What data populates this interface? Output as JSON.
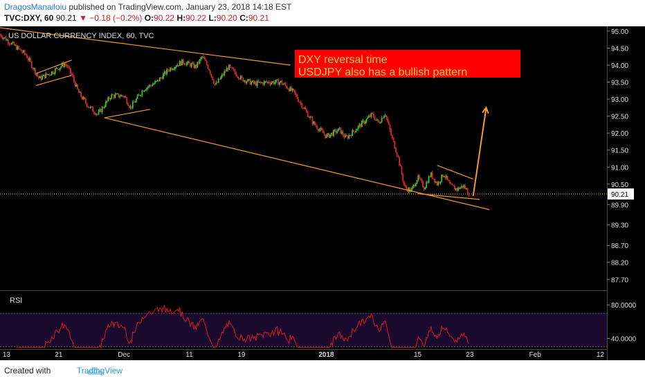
{
  "header": {
    "author": "DragosManailoiu",
    "published": "published on TradingView.com, January 23, 2018 14:18 EST",
    "symbol": "TVC:DXY, 60",
    "last": "90.21",
    "change_arrow": "▼",
    "change": "−0.18 (−0.2%)",
    "open_label": "O:",
    "open": "90.22",
    "high_label": "H:",
    "high": "90.22",
    "low_label": "L:",
    "low": "90.20",
    "close_label": "C:",
    "close": "90.21"
  },
  "footer": {
    "created_with": "Created with",
    "brand": "TradingView"
  },
  "colors": {
    "background": "#000000",
    "up_candle": "#39c43a",
    "down_candle": "#d8282a",
    "trendline": "#f39a2b",
    "rsi_line": "#e0161c",
    "rsi_band": "#1a0b2e",
    "annotation_bg": "#ff0000",
    "annotation_text": "#ffd23a",
    "price_marker": "#f5b400"
  },
  "chart_data": [
    {
      "type": "candlestick",
      "title": "US DOLLAR CURRENCY INDEX, 60, TVC",
      "ylim": [
        87.4,
        95.1
      ],
      "y_ticks": [
        "95.00",
        "94.50",
        "94.00",
        "93.50",
        "93.00",
        "92.50",
        "92.00",
        "91.50",
        "91.00",
        "90.50",
        "89.90",
        "89.30",
        "88.70",
        "88.20",
        "87.70"
      ],
      "x_ticks": [
        "13",
        "21",
        "Dec",
        "11",
        "19",
        "2018",
        "15",
        "23",
        "Feb",
        "12"
      ],
      "x_range_days": [
        0,
        93
      ],
      "x_tick_days": [
        1,
        9,
        19,
        29,
        37,
        50,
        64,
        72,
        82,
        92
      ],
      "last_price": "90.21",
      "price_path": [
        {
          "day": 0,
          "price": 94.9
        },
        {
          "day": 2,
          "price": 94.6
        },
        {
          "day": 4,
          "price": 94.3
        },
        {
          "day": 6,
          "price": 93.6
        },
        {
          "day": 8,
          "price": 93.8
        },
        {
          "day": 10,
          "price": 94.05
        },
        {
          "day": 11,
          "price": 93.7
        },
        {
          "day": 12,
          "price": 93.2
        },
        {
          "day": 13.5,
          "price": 92.8
        },
        {
          "day": 15,
          "price": 92.55
        },
        {
          "day": 17,
          "price": 93.1
        },
        {
          "day": 19,
          "price": 93.1
        },
        {
          "day": 20,
          "price": 92.75
        },
        {
          "day": 22,
          "price": 93.3
        },
        {
          "day": 24,
          "price": 93.5
        },
        {
          "day": 26,
          "price": 93.9
        },
        {
          "day": 28,
          "price": 94.1
        },
        {
          "day": 30,
          "price": 93.95
        },
        {
          "day": 31,
          "price": 94.25
        },
        {
          "day": 32,
          "price": 93.9
        },
        {
          "day": 33,
          "price": 93.4
        },
        {
          "day": 35,
          "price": 93.95
        },
        {
          "day": 37,
          "price": 93.6
        },
        {
          "day": 39,
          "price": 93.45
        },
        {
          "day": 41,
          "price": 93.5
        },
        {
          "day": 43,
          "price": 93.5
        },
        {
          "day": 45,
          "price": 93.2
        },
        {
          "day": 47,
          "price": 92.6
        },
        {
          "day": 48,
          "price": 92.3
        },
        {
          "day": 50,
          "price": 91.9
        },
        {
          "day": 52,
          "price": 92.1
        },
        {
          "day": 53,
          "price": 91.85
        },
        {
          "day": 55,
          "price": 92.2
        },
        {
          "day": 57,
          "price": 92.55
        },
        {
          "day": 58,
          "price": 92.3
        },
        {
          "day": 59,
          "price": 92.6
        },
        {
          "day": 60,
          "price": 91.9
        },
        {
          "day": 61,
          "price": 91.3
        },
        {
          "day": 62,
          "price": 90.4
        },
        {
          "day": 63,
          "price": 90.3
        },
        {
          "day": 64,
          "price": 90.7
        },
        {
          "day": 65,
          "price": 90.4
        },
        {
          "day": 66,
          "price": 90.8
        },
        {
          "day": 67,
          "price": 90.5
        },
        {
          "day": 68,
          "price": 90.8
        },
        {
          "day": 69,
          "price": 90.45
        },
        {
          "day": 70,
          "price": 90.35
        },
        {
          "day": 71,
          "price": 90.45
        },
        {
          "day": 72,
          "price": 90.21
        }
      ],
      "trendlines": [
        {
          "from": {
            "day": 0,
            "price": 95.1
          },
          "to": {
            "day": 44.5,
            "price": 94.0
          }
        },
        {
          "from": {
            "day": 16,
            "price": 92.45
          },
          "to": {
            "day": 75,
            "price": 89.75
          }
        },
        {
          "from": {
            "day": 16,
            "price": 92.45
          },
          "to": {
            "day": 23,
            "price": 92.7
          }
        },
        {
          "from": {
            "day": 5.5,
            "price": 93.4
          },
          "to": {
            "day": 11,
            "price": 93.7
          }
        },
        {
          "from": {
            "day": 5.5,
            "price": 93.75
          },
          "to": {
            "day": 11,
            "price": 94.15
          }
        },
        {
          "from": {
            "day": 67,
            "price": 91.05
          },
          "to": {
            "day": 72.5,
            "price": 90.65
          }
        },
        {
          "from": {
            "day": 64,
            "price": 90.22
          },
          "to": {
            "day": 73.5,
            "price": 90.05
          }
        }
      ],
      "arrow": {
        "from": {
          "day": 72.5,
          "price": 90.15
        },
        "to": {
          "day": 74.5,
          "price": 92.75
        }
      },
      "annotation": [
        "DXY reversal time",
        "USDJPY also has a bullish pattern"
      ]
    },
    {
      "type": "line",
      "title": "RSI",
      "ylim": [
        28,
        95
      ],
      "y_ticks": [
        "80.0000",
        "40.0000"
      ],
      "band": [
        30,
        70
      ],
      "x_range_days": [
        0,
        93
      ],
      "series_end_day": 72.5
    }
  ]
}
